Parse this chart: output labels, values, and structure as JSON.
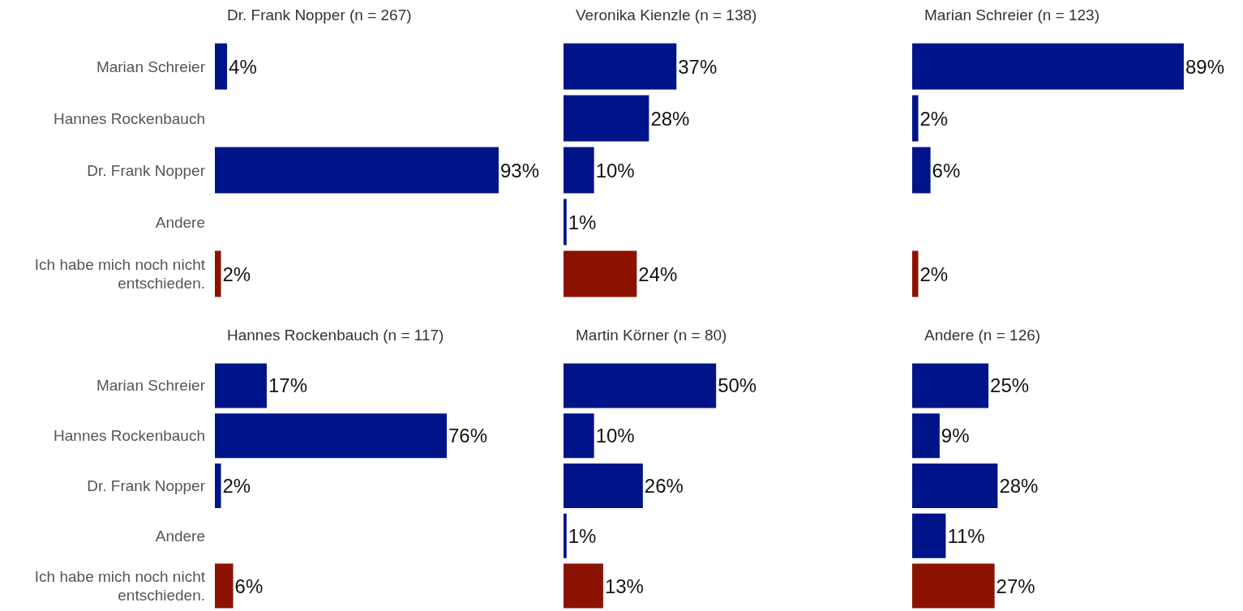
{
  "chart_data": [
    {
      "type": "bar",
      "orientation": "horizontal",
      "title": "Dr. Frank Nopper (n = 267)",
      "categories": [
        "Marian Schreier",
        "Hannes Rockenbauch",
        "Dr. Frank Nopper",
        "Andere",
        "Ich habe mich noch nicht entschieden."
      ],
      "values": [
        4,
        null,
        93,
        null,
        2
      ],
      "value_labels": [
        "4%",
        null,
        "93%",
        null,
        "2%"
      ],
      "colors": [
        "#001489",
        "#001489",
        "#001489",
        "#001489",
        "#8b1200"
      ],
      "tick_labels": "y",
      "grid": false
    },
    {
      "type": "bar",
      "orientation": "horizontal",
      "title": "Veronika Kienzle (n = 138)",
      "categories": [
        "Marian Schreier",
        "Hannes Rockenbauch",
        "Dr. Frank Nopper",
        "Andere",
        "Ich habe mich noch nicht entschieden."
      ],
      "values": [
        37,
        28,
        10,
        1,
        24
      ],
      "value_labels": [
        "37%",
        "28%",
        "10%",
        "1%",
        "24%"
      ],
      "colors": [
        "#001489",
        "#001489",
        "#001489",
        "#001489",
        "#8b1200"
      ],
      "tick_labels": false,
      "grid": false
    },
    {
      "type": "bar",
      "orientation": "horizontal",
      "title": "Marian Schreier (n = 123)",
      "categories": [
        "Marian Schreier",
        "Hannes Rockenbauch",
        "Dr. Frank Nopper",
        "Andere",
        "Ich habe mich noch nicht entschieden."
      ],
      "values": [
        89,
        2,
        6,
        null,
        2
      ],
      "value_labels": [
        "89%",
        "2%",
        "6%",
        null,
        "2%"
      ],
      "colors": [
        "#001489",
        "#001489",
        "#001489",
        "#001489",
        "#8b1200"
      ],
      "tick_labels": false,
      "grid": false
    },
    {
      "type": "bar",
      "orientation": "horizontal",
      "title": "Hannes Rockenbauch (n = 117)",
      "categories": [
        "Marian Schreier",
        "Hannes Rockenbauch",
        "Dr. Frank Nopper",
        "Andere",
        "Ich habe mich noch nicht entschieden."
      ],
      "values": [
        17,
        76,
        2,
        null,
        6
      ],
      "value_labels": [
        "17%",
        "76%",
        "2%",
        null,
        "6%"
      ],
      "colors": [
        "#001489",
        "#001489",
        "#001489",
        "#001489",
        "#8b1200"
      ],
      "tick_labels": "y",
      "grid": false
    },
    {
      "type": "bar",
      "orientation": "horizontal",
      "title": "Martin Körner (n = 80)",
      "categories": [
        "Marian Schreier",
        "Hannes Rockenbauch",
        "Dr. Frank Nopper",
        "Andere",
        "Ich habe mich noch nicht entschieden."
      ],
      "values": [
        50,
        10,
        26,
        1,
        13
      ],
      "value_labels": [
        "50%",
        "10%",
        "26%",
        "1%",
        "13%"
      ],
      "colors": [
        "#001489",
        "#001489",
        "#001489",
        "#001489",
        "#8b1200"
      ],
      "tick_labels": false,
      "grid": false
    },
    {
      "type": "bar",
      "orientation": "horizontal",
      "title": "Andere (n = 126)",
      "categories": [
        "Marian Schreier",
        "Hannes Rockenbauch",
        "Dr. Frank Nopper",
        "Andere",
        "Ich habe mich noch nicht entschieden."
      ],
      "values": [
        25,
        9,
        28,
        11,
        27
      ],
      "value_labels": [
        "25%",
        "9%",
        "28%",
        "11%",
        "27%"
      ],
      "colors": [
        "#001489",
        "#001489",
        "#001489",
        "#001489",
        "#8b1200"
      ],
      "tick_labels": false,
      "grid": false
    }
  ]
}
